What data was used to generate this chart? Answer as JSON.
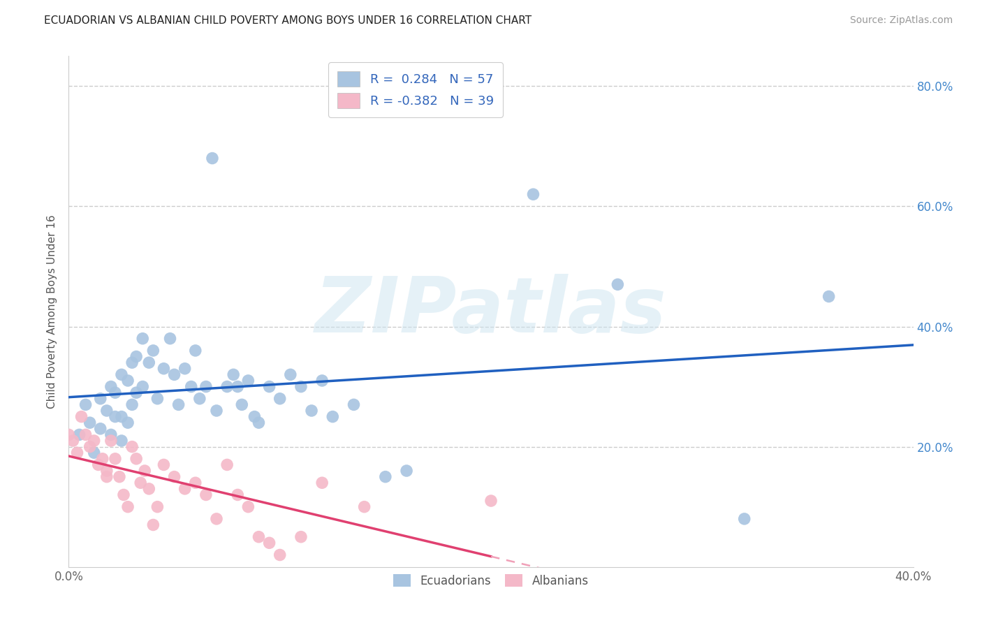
{
  "title": "ECUADORIAN VS ALBANIAN CHILD POVERTY AMONG BOYS UNDER 16 CORRELATION CHART",
  "source": "Source: ZipAtlas.com",
  "ylabel": "Child Poverty Among Boys Under 16",
  "watermark": "ZIPatlas",
  "xlim": [
    0.0,
    0.4
  ],
  "ylim": [
    0.0,
    0.85
  ],
  "xticks": [
    0.0,
    0.1,
    0.2,
    0.3,
    0.4
  ],
  "yticks": [
    0.0,
    0.2,
    0.4,
    0.6,
    0.8
  ],
  "xticklabels": [
    "0.0%",
    "",
    "",
    "",
    "40.0%"
  ],
  "yticklabels_right": [
    "",
    "20.0%",
    "40.0%",
    "60.0%",
    "80.0%"
  ],
  "grid_color": "#cccccc",
  "background_color": "#ffffff",
  "ecuadorian_color": "#a8c4e0",
  "albanian_color": "#f4b8c8",
  "ecuadorian_line_color": "#2060c0",
  "albanian_line_color": "#e04070",
  "albanian_line_dashed_color": "#f0a0b8",
  "R_ecu": 0.284,
  "N_ecu": 57,
  "R_alb": -0.382,
  "N_alb": 39,
  "legend_label_ecu": "Ecuadorians",
  "legend_label_alb": "Albanians",
  "ecuadorian_x": [
    0.005,
    0.008,
    0.01,
    0.012,
    0.015,
    0.015,
    0.018,
    0.02,
    0.02,
    0.022,
    0.022,
    0.025,
    0.025,
    0.025,
    0.028,
    0.028,
    0.03,
    0.03,
    0.032,
    0.032,
    0.035,
    0.035,
    0.038,
    0.04,
    0.042,
    0.045,
    0.048,
    0.05,
    0.052,
    0.055,
    0.058,
    0.06,
    0.062,
    0.065,
    0.068,
    0.07,
    0.075,
    0.078,
    0.08,
    0.082,
    0.085,
    0.088,
    0.09,
    0.095,
    0.1,
    0.105,
    0.11,
    0.115,
    0.12,
    0.125,
    0.135,
    0.15,
    0.16,
    0.22,
    0.26,
    0.32,
    0.36
  ],
  "ecuadorian_y": [
    0.22,
    0.27,
    0.24,
    0.19,
    0.28,
    0.23,
    0.26,
    0.3,
    0.22,
    0.29,
    0.25,
    0.32,
    0.25,
    0.21,
    0.31,
    0.24,
    0.34,
    0.27,
    0.35,
    0.29,
    0.38,
    0.3,
    0.34,
    0.36,
    0.28,
    0.33,
    0.38,
    0.32,
    0.27,
    0.33,
    0.3,
    0.36,
    0.28,
    0.3,
    0.68,
    0.26,
    0.3,
    0.32,
    0.3,
    0.27,
    0.31,
    0.25,
    0.24,
    0.3,
    0.28,
    0.32,
    0.3,
    0.26,
    0.31,
    0.25,
    0.27,
    0.15,
    0.16,
    0.62,
    0.47,
    0.08,
    0.45
  ],
  "albanian_x": [
    0.0,
    0.002,
    0.004,
    0.006,
    0.008,
    0.01,
    0.012,
    0.014,
    0.016,
    0.018,
    0.018,
    0.02,
    0.022,
    0.024,
    0.026,
    0.028,
    0.03,
    0.032,
    0.034,
    0.036,
    0.038,
    0.04,
    0.042,
    0.045,
    0.05,
    0.055,
    0.06,
    0.065,
    0.07,
    0.075,
    0.08,
    0.085,
    0.09,
    0.095,
    0.1,
    0.11,
    0.12,
    0.14,
    0.2
  ],
  "albanian_y": [
    0.22,
    0.21,
    0.19,
    0.25,
    0.22,
    0.2,
    0.21,
    0.17,
    0.18,
    0.16,
    0.15,
    0.21,
    0.18,
    0.15,
    0.12,
    0.1,
    0.2,
    0.18,
    0.14,
    0.16,
    0.13,
    0.07,
    0.1,
    0.17,
    0.15,
    0.13,
    0.14,
    0.12,
    0.08,
    0.17,
    0.12,
    0.1,
    0.05,
    0.04,
    0.02,
    0.05,
    0.14,
    0.1,
    0.11
  ]
}
